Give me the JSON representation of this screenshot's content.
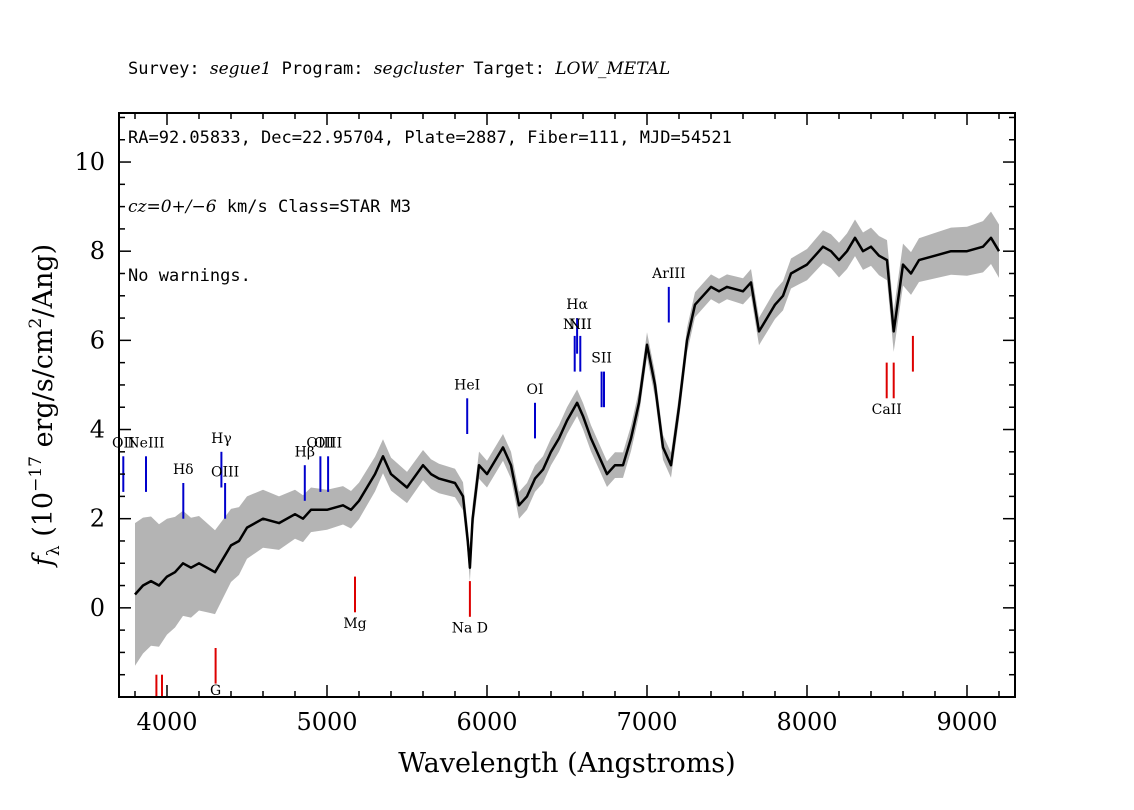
{
  "header": {
    "line1": {
      "survey_label": "Survey: ",
      "survey": "segue1",
      "program_label": " Program: ",
      "program": "segcluster",
      "target_label": " Target: ",
      "target": "LOW_METAL"
    },
    "line2": "RA=92.05833, Dec=22.95704, Plate=2887, Fiber=111, MJD=54521",
    "line3": {
      "cz": "cz=0+/−6",
      "rest": " km/s Class=STAR M3"
    },
    "line4": "No warnings."
  },
  "chart_data": {
    "type": "line",
    "title": "",
    "xlabel": "Wavelength (Angstroms)",
    "ylabel_parts": {
      "f": "f",
      "sub": "λ",
      "pre": " (10",
      "exp1": "−17",
      "mid": " erg/s/cm",
      "exp2": "2",
      "post": "/Ang)"
    },
    "xlim": [
      3700,
      9300
    ],
    "ylim": [
      -2.0,
      11.1
    ],
    "xticks": [
      4000,
      5000,
      6000,
      7000,
      8000,
      9000
    ],
    "xtick_labels": [
      "4000",
      "5000",
      "6000",
      "7000",
      "8000",
      "9000"
    ],
    "yticks": [
      0,
      2,
      4,
      6,
      8,
      10
    ],
    "ytick_labels": [
      "0",
      "2",
      "4",
      "6",
      "8",
      "10"
    ],
    "x_minor_step": 200,
    "y_minor_step": 0.5,
    "grid": false,
    "colors": {
      "spectrum": "#000000",
      "error_band": "#b4b4b4",
      "emission_line": "#0000cc",
      "absorption_line": "#dd0000"
    },
    "series": [
      {
        "role": "flux",
        "x": [
          3800,
          3850,
          3900,
          3950,
          4000,
          4050,
          4100,
          4150,
          4200,
          4250,
          4300,
          4350,
          4400,
          4450,
          4500,
          4600,
          4700,
          4800,
          4850,
          4900,
          5000,
          5100,
          5150,
          5200,
          5300,
          5350,
          5400,
          5500,
          5600,
          5650,
          5700,
          5800,
          5850,
          5880,
          5893,
          5910,
          5950,
          6000,
          6100,
          6150,
          6200,
          6250,
          6300,
          6350,
          6400,
          6450,
          6500,
          6563,
          6600,
          6650,
          6700,
          6750,
          6800,
          6850,
          6900,
          6950,
          7000,
          7050,
          7100,
          7150,
          7200,
          7250,
          7300,
          7350,
          7400,
          7450,
          7500,
          7600,
          7650,
          7700,
          7750,
          7800,
          7850,
          7900,
          7950,
          8000,
          8050,
          8100,
          8150,
          8200,
          8250,
          8300,
          8350,
          8400,
          8450,
          8500,
          8542,
          8600,
          8650,
          8700,
          8800,
          8900,
          9000,
          9100,
          9150,
          9200
        ],
        "values": [
          0.3,
          0.5,
          0.6,
          0.5,
          0.7,
          0.8,
          1.0,
          0.9,
          1.0,
          0.9,
          0.8,
          1.1,
          1.4,
          1.5,
          1.8,
          2.0,
          1.9,
          2.1,
          2.0,
          2.2,
          2.2,
          2.3,
          2.2,
          2.4,
          3.0,
          3.4,
          3.0,
          2.7,
          3.2,
          3.0,
          2.9,
          2.8,
          2.5,
          1.5,
          0.9,
          2.0,
          3.2,
          3.0,
          3.6,
          3.2,
          2.3,
          2.5,
          2.9,
          3.1,
          3.5,
          3.8,
          4.2,
          4.6,
          4.3,
          3.8,
          3.4,
          3.0,
          3.2,
          3.2,
          3.8,
          4.6,
          5.9,
          5.0,
          3.6,
          3.2,
          4.5,
          6.0,
          6.8,
          7.0,
          7.2,
          7.1,
          7.2,
          7.1,
          7.3,
          6.2,
          6.5,
          6.8,
          7.0,
          7.5,
          7.6,
          7.7,
          7.9,
          8.1,
          8.0,
          7.8,
          8.0,
          8.3,
          8.0,
          8.1,
          7.9,
          7.8,
          6.2,
          7.7,
          7.5,
          7.8,
          7.9,
          8.0,
          8.0,
          8.1,
          8.3,
          8.0
        ]
      },
      {
        "role": "error",
        "x": [
          3800,
          4000,
          4500,
          5000,
          5500,
          6000,
          6500,
          7000,
          7500,
          8000,
          8500,
          9000,
          9200
        ],
        "values": [
          1.6,
          1.3,
          0.7,
          0.45,
          0.35,
          0.3,
          0.3,
          0.28,
          0.28,
          0.35,
          0.45,
          0.55,
          0.6
        ]
      }
    ],
    "line_markers": [
      {
        "label": "OII",
        "wavelength": 3727,
        "kind": "emission",
        "y_low": 2.6,
        "y_high": 3.4,
        "label_y": 3.6
      },
      {
        "label": "NeIII",
        "wavelength": 3869,
        "kind": "emission",
        "y_low": 2.6,
        "y_high": 3.4,
        "label_y": 3.6
      },
      {
        "label": "Hδ",
        "wavelength": 4102,
        "kind": "emission",
        "y_low": 2.0,
        "y_high": 2.8,
        "label_y": 3.0
      },
      {
        "label": "Hγ",
        "wavelength": 4340,
        "kind": "emission",
        "y_low": 2.7,
        "y_high": 3.5,
        "label_y": 3.7
      },
      {
        "label": "OIII",
        "wavelength": 4363,
        "kind": "emission",
        "y_low": 2.0,
        "y_high": 2.8,
        "label_y": 2.95
      },
      {
        "label": "Hβ",
        "wavelength": 4861,
        "kind": "emission",
        "y_low": 2.4,
        "y_high": 3.2,
        "label_y": 3.4
      },
      {
        "label": "OIII",
        "wavelength": 4959,
        "kind": "emission",
        "y_low": 2.6,
        "y_high": 3.4,
        "label_y": 3.6
      },
      {
        "label": "OIII",
        "wavelength": 5007,
        "kind": "emission",
        "y_low": 2.6,
        "y_high": 3.4,
        "label_y": 3.6
      },
      {
        "label": "HeI",
        "wavelength": 5876,
        "kind": "emission",
        "y_low": 3.9,
        "y_high": 4.7,
        "label_y": 4.9
      },
      {
        "label": "OI",
        "wavelength": 6300,
        "kind": "emission",
        "y_low": 3.8,
        "y_high": 4.6,
        "label_y": 4.8
      },
      {
        "label": "NII",
        "wavelength": 6548,
        "kind": "emission",
        "y_low": 5.3,
        "y_high": 6.1,
        "label_y": 6.25
      },
      {
        "label": "Hα",
        "wavelength": 6563,
        "kind": "emission",
        "y_low": 5.7,
        "y_high": 6.5,
        "label_y": 6.7
      },
      {
        "label": "NII",
        "wavelength": 6583,
        "kind": "emission",
        "y_low": 5.3,
        "y_high": 6.1,
        "label_y": 6.25
      },
      {
        "label": "SII",
        "wavelength": 6716,
        "kind": "emission",
        "y_low": 4.5,
        "y_high": 5.3,
        "label_y": 5.5
      },
      {
        "label": "",
        "wavelength": 6731,
        "kind": "emission",
        "y_low": 4.5,
        "y_high": 5.3,
        "label_y": 5.5
      },
      {
        "label": "ArIII",
        "wavelength": 7136,
        "kind": "emission",
        "y_low": 6.4,
        "y_high": 7.2,
        "label_y": 7.4
      },
      {
        "label": "Mg",
        "wavelength": 5175,
        "kind": "absorption",
        "y_low": -0.1,
        "y_high": 0.7,
        "label_y": -0.45
      },
      {
        "label": "Na D",
        "wavelength": 5893,
        "kind": "absorption",
        "y_low": -0.2,
        "y_high": 0.6,
        "label_y": -0.55
      },
      {
        "label": "CaII",
        "wavelength": 8498,
        "kind": "absorption",
        "y_low": 4.7,
        "y_high": 5.5,
        "label_y": 4.35
      },
      {
        "label": "",
        "wavelength": 8542,
        "kind": "absorption",
        "y_low": 4.7,
        "y_high": 5.5,
        "label_y": 4.35
      },
      {
        "label": "",
        "wavelength": 8662,
        "kind": "absorption",
        "y_low": 5.3,
        "y_high": 6.1,
        "label_y": 4.35
      },
      {
        "label": "G",
        "wavelength": 4304,
        "kind": "absorption",
        "y_low": -1.7,
        "y_high": -0.9,
        "label_y": -1.95
      },
      {
        "label": "",
        "wavelength": 3934,
        "kind": "absorption",
        "y_low": -2.0,
        "y_high": -1.5,
        "label_y": -2.0
      },
      {
        "label": "",
        "wavelength": 3969,
        "kind": "absorption",
        "y_low": -2.0,
        "y_high": -1.5,
        "label_y": -2.0
      }
    ]
  }
}
